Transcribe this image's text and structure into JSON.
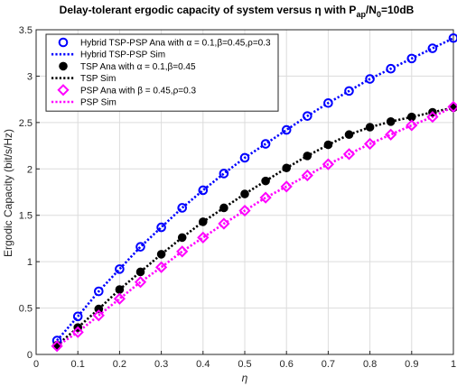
{
  "chart_data": {
    "type": "line",
    "title_main": "Delay-tolerant ergodic capacity of system versus η with P",
    "title_sub1": "ap",
    "title_mid": "/N",
    "title_sub2": "0",
    "title_end": "=10dB",
    "xlabel": "η",
    "ylabel": "Ergodic Capacity (bit/s/Hz)",
    "xlim": [
      0,
      1
    ],
    "ylim": [
      0,
      3.5
    ],
    "grid": true,
    "legend_position": "top-left",
    "x_ticks": [
      0,
      0.1,
      0.2,
      0.3,
      0.4,
      0.5,
      0.6,
      0.7,
      0.8,
      0.9,
      1
    ],
    "x_tick_labels": [
      "0",
      "0.1",
      "0.2",
      "0.3",
      "0.4",
      "0.5",
      "0.6",
      "0.7",
      "0.8",
      "0.9",
      "1"
    ],
    "y_ticks": [
      0,
      0.5,
      1,
      1.5,
      2,
      2.5,
      3,
      3.5
    ],
    "y_tick_labels": [
      "0",
      "0.5",
      "1",
      "1.5",
      "2",
      "2.5",
      "3",
      "3.5"
    ],
    "x": [
      0.05,
      0.1,
      0.15,
      0.2,
      0.25,
      0.3,
      0.35,
      0.4,
      0.45,
      0.5,
      0.55,
      0.6,
      0.65,
      0.7,
      0.75,
      0.8,
      0.85,
      0.9,
      0.95,
      1.0
    ],
    "series": [
      {
        "name": "Hybrid TSP-PSP Ana with α = 0.1,β=0.45,ρ=0.3",
        "color": "#0000ff",
        "style": "marker-open-circle",
        "values": [
          0.15,
          0.41,
          0.68,
          0.92,
          1.16,
          1.37,
          1.58,
          1.77,
          1.95,
          2.12,
          2.27,
          2.42,
          2.57,
          2.71,
          2.84,
          2.97,
          3.08,
          3.19,
          3.3,
          3.41
        ]
      },
      {
        "name": "Hybrid TSP-PSP Sim",
        "color": "#0000ff",
        "style": "dotted-line",
        "values": [
          0.15,
          0.41,
          0.68,
          0.92,
          1.16,
          1.37,
          1.58,
          1.77,
          1.95,
          2.12,
          2.27,
          2.42,
          2.57,
          2.71,
          2.84,
          2.97,
          3.08,
          3.19,
          3.3,
          3.41
        ]
      },
      {
        "name": "TSP Ana with α = 0.1,β=0.45",
        "color": "#000000",
        "style": "marker-filled-circle",
        "values": [
          0.1,
          0.29,
          0.49,
          0.7,
          0.89,
          1.08,
          1.26,
          1.43,
          1.58,
          1.73,
          1.87,
          2.01,
          2.14,
          2.26,
          2.37,
          2.45,
          2.51,
          2.56,
          2.61,
          2.66
        ]
      },
      {
        "name": "TSP Sim",
        "color": "#000000",
        "style": "dotted-line",
        "values": [
          0.1,
          0.29,
          0.49,
          0.7,
          0.89,
          1.08,
          1.26,
          1.43,
          1.58,
          1.73,
          1.87,
          2.01,
          2.14,
          2.26,
          2.37,
          2.45,
          2.51,
          2.56,
          2.61,
          2.66
        ]
      },
      {
        "name": "PSP Ana with β = 0.45,ρ=0.3",
        "color": "#ff00ff",
        "style": "marker-open-diamond",
        "values": [
          0.09,
          0.24,
          0.42,
          0.6,
          0.78,
          0.94,
          1.11,
          1.26,
          1.41,
          1.55,
          1.69,
          1.81,
          1.93,
          2.05,
          2.16,
          2.27,
          2.37,
          2.47,
          2.56,
          2.67
        ]
      },
      {
        "name": "PSP Sim",
        "color": "#ff00ff",
        "style": "dotted-line",
        "values": [
          0.09,
          0.24,
          0.42,
          0.6,
          0.78,
          0.94,
          1.11,
          1.26,
          1.41,
          1.55,
          1.69,
          1.81,
          1.93,
          2.05,
          2.16,
          2.27,
          2.37,
          2.47,
          2.56,
          2.67
        ]
      }
    ]
  }
}
